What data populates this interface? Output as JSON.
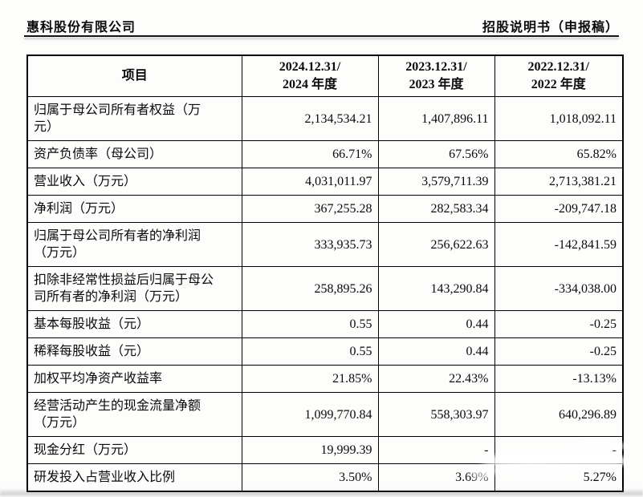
{
  "page_header": {
    "company": "惠科股份有限公司",
    "doc_title": "招股说明书（申报稿）"
  },
  "table": {
    "columns": [
      {
        "label": "项目"
      },
      {
        "label": "2024.12.31/\n2024 年度"
      },
      {
        "label": "2023.12.31/\n2023 年度"
      },
      {
        "label": "2022.12.31/\n2022 年度"
      }
    ],
    "rows": [
      {
        "label": "归属于母公司所有者权益（万\n元）",
        "values": [
          "2,134,534.21",
          "1,407,896.11",
          "1,018,092.11"
        ]
      },
      {
        "label": "资产负债率（母公司）",
        "values": [
          "66.71%",
          "67.56%",
          "65.82%"
        ]
      },
      {
        "label": "营业收入（万元）",
        "values": [
          "4,031,011.97",
          "3,579,711.39",
          "2,713,381.21"
        ]
      },
      {
        "label": "净利润（万元）",
        "values": [
          "367,255.28",
          "282,583.34",
          "-209,747.18"
        ]
      },
      {
        "label": "归属于母公司所有者的净利润\n（万元）",
        "values": [
          "333,935.73",
          "256,622.63",
          "-142,841.59"
        ]
      },
      {
        "label": "扣除非经常性损益后归属于母公\n司所有者的净利润（万元）",
        "values": [
          "258,895.26",
          "143,290.84",
          "-334,038.00"
        ]
      },
      {
        "label": "基本每股收益（元）",
        "values": [
          "0.55",
          "0.44",
          "-0.25"
        ]
      },
      {
        "label": "稀释每股收益（元）",
        "values": [
          "0.55",
          "0.44",
          "-0.25"
        ]
      },
      {
        "label": "加权平均净资产收益率",
        "values": [
          "21.85%",
          "22.43%",
          "-13.13%"
        ]
      },
      {
        "label": "经营活动产生的现金流量净额\n（万元）",
        "values": [
          "1,099,770.84",
          "558,303.97",
          "640,296.89"
        ]
      },
      {
        "label": "现金分红（万元）",
        "values": [
          "19,999.39",
          "-",
          "-"
        ]
      },
      {
        "label": "研发投入占营业收入比例",
        "values": [
          "3.50%",
          "3.69%",
          "5.27%"
        ]
      }
    ]
  }
}
